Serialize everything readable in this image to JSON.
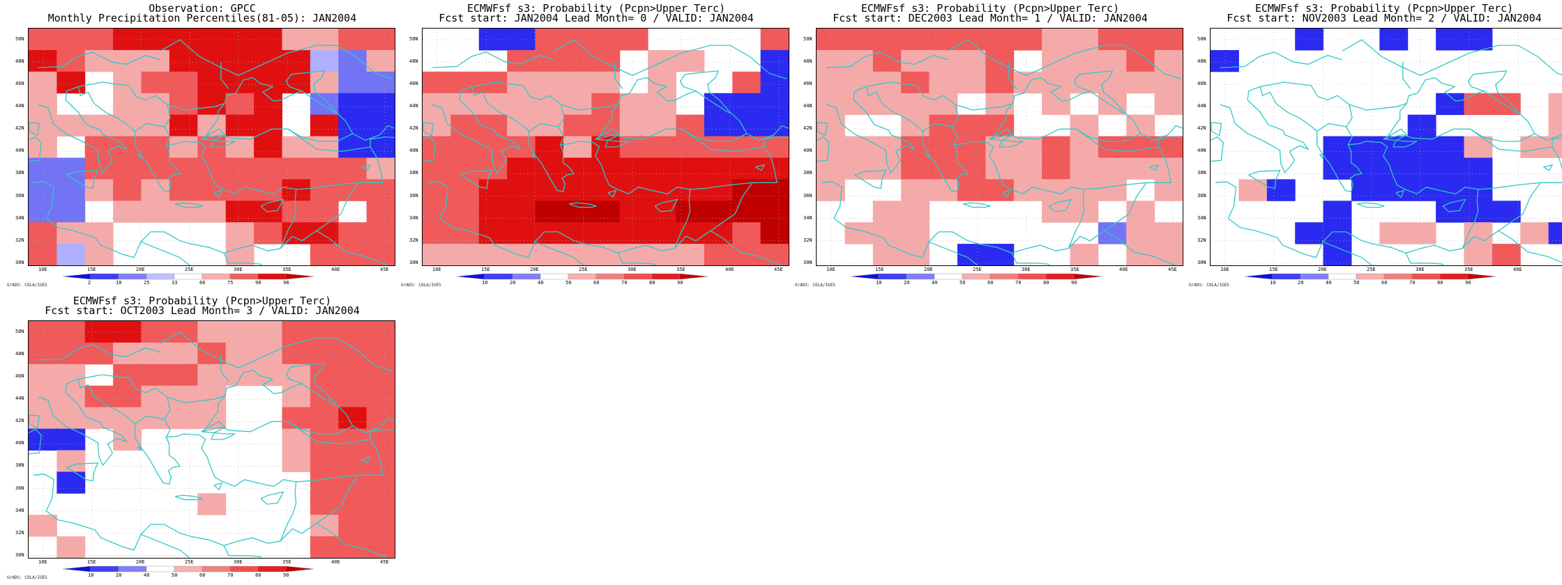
{
  "panels": [
    {
      "title1": "Observation: GPCC",
      "title2": "Monthly Precipitation Percentiles(81-05): JAN2004",
      "colorbar": "pct",
      "grid": [
        "5556666664455",
        "6544466666324",
        "4604556666422",
        "4004456560211",
        "4444464660611",
        "4055545464411",
        "2255555555554",
        "2245455556555",
        "2204444665505",
        "5440000456655",
        "5340000400555"
      ]
    },
    {
      "title1": "ECMWFsf s3: Probability (Pcpn>Upper Terc)",
      "title2": "Fcst start: JAN2004  Lead Month= 0 / VALID: JAN2004",
      "colorbar": "prob",
      "grid": [
        "0011555500005",
        "0005555044001",
        "5554444040051",
        "4444445440111",
        "4554455445111",
        "5555646555555",
        "5556666666666",
        "5566666666677",
        "5566777667777",
        "5566666666657",
        "4444444444555"
      ]
    },
    {
      "title1": "ECMWFsf s3: Probability (Pcpn>Upper Terc)",
      "title2": "Fcst start: DEC2003  Lead Month= 1 / VALID: JAN2004",
      "colorbar": "prob",
      "grid": [
        "5555555544555",
        "4454445044454",
        "4445445444444",
        "4444404040404",
        "4004555004040",
        "4445554454555",
        "4445554454444",
        "4004455444404",
        "0044000044040",
        "0444000000244",
        "0044011004044"
      ]
    },
    {
      "title1": "ECMWFsf s3: Probability (Pcpn>Upper Terc)",
      "title2": "Fcst start: NOV2003  Lead Month= 2 / VALID: JAN2004",
      "colorbar": "prob",
      "grid": [
        "0001001011000",
        "1000000000000",
        "0000000000000",
        "0000000015504",
        "0000000100004",
        "0000111114044",
        "0000111111000",
        "0410011111000",
        "0000100011100",
        "0001104404041",
        "0000100004500"
      ]
    },
    {
      "title1": "ECMWFsf s3: Probability (Pcpn>Upper Terc)",
      "title2": "Fcst start: OCT2003  Lead Month= 3 / VALID: JAN2004",
      "colorbar": "prob",
      "grid": [
        "5566554445555",
        "5554445445555",
        "4405554444555",
        "4455444004555",
        "4444444005565",
        "1104000004555",
        "0400000004555",
        "0100000000555",
        "0000004000555",
        "4000000000455",
        "0400000000555"
      ]
    }
  ],
  "lat_labels": [
    "50N",
    "48N",
    "46N",
    "44N",
    "42N",
    "40N",
    "38N",
    "36N",
    "34N",
    "32N",
    "30N"
  ],
  "lon_labels": [
    "10E",
    "15E",
    "20E",
    "25E",
    "30E",
    "35E",
    "40E",
    "45E"
  ],
  "pct_colorbar_labels": [
    "2",
    "10",
    "25",
    "33",
    "66",
    "75",
    "90",
    "98"
  ],
  "prob_colorbar_labels": [
    "10",
    "20",
    "40",
    "50",
    "60",
    "70",
    "80",
    "90"
  ],
  "credit": "GrADS: COLA/IGES",
  "colors": {
    "levels": [
      "#ffffff",
      "#2a2af0",
      "#7373f5",
      "#afafff",
      "#f5aaaa",
      "#f05a5a",
      "#e01010",
      "#c00000"
    ],
    "pct_colorbar": [
      "#1010e0",
      "#4040f0",
      "#8080f8",
      "#c0c0ff",
      "#ffffff",
      "#f8b0b0",
      "#f06060",
      "#e01010",
      "#c00000"
    ],
    "prob_colorbar": [
      "#1010e0",
      "#4040f0",
      "#8080f8",
      "#ffffff",
      "#f8b0b0",
      "#f08080",
      "#f05050",
      "#e02020",
      "#c00000"
    ],
    "coast": "#30c8c8",
    "grid_dots": "#b0b0b0"
  }
}
